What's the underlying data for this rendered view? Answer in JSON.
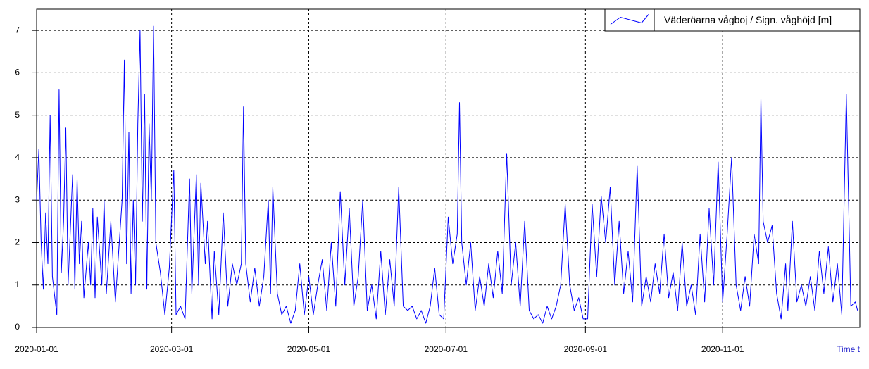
{
  "chart_data": {
    "type": "line",
    "x_label": "Time t",
    "legend": "upper right",
    "grid": true,
    "xlim": [
      "2020-01-01",
      "2021-01-01"
    ],
    "xticks": [
      "2020-01-01",
      "2020-03-01",
      "2020-05-01",
      "2020-07-01",
      "2020-09-01",
      "2020-11-01"
    ],
    "ylim": [
      0,
      7.5
    ],
    "yticks": [
      0,
      1,
      2,
      3,
      4,
      5,
      6,
      7
    ],
    "x": [
      "2020-01-01",
      "2020-01-02",
      "2020-01-03",
      "2020-01-04",
      "2020-01-05",
      "2020-01-06",
      "2020-01-07",
      "2020-01-08",
      "2020-01-10",
      "2020-01-11",
      "2020-01-12",
      "2020-01-13",
      "2020-01-14",
      "2020-01-15",
      "2020-01-17",
      "2020-01-18",
      "2020-01-19",
      "2020-01-20",
      "2020-01-21",
      "2020-01-22",
      "2020-01-24",
      "2020-01-25",
      "2020-01-26",
      "2020-01-27",
      "2020-01-28",
      "2020-01-30",
      "2020-01-31",
      "2020-02-01",
      "2020-02-03",
      "2020-02-05",
      "2020-02-08",
      "2020-02-09",
      "2020-02-10",
      "2020-02-11",
      "2020-02-12",
      "2020-02-13",
      "2020-02-14",
      "2020-02-15",
      "2020-02-16",
      "2020-02-17",
      "2020-02-18",
      "2020-02-19",
      "2020-02-20",
      "2020-02-21",
      "2020-02-22",
      "2020-02-23",
      "2020-02-25",
      "2020-02-27",
      "2020-02-29",
      "2020-03-02",
      "2020-03-03",
      "2020-03-05",
      "2020-03-07",
      "2020-03-09",
      "2020-03-10",
      "2020-03-12",
      "2020-03-13",
      "2020-03-14",
      "2020-03-16",
      "2020-03-17",
      "2020-03-19",
      "2020-03-20",
      "2020-03-22",
      "2020-03-24",
      "2020-03-26",
      "2020-03-28",
      "2020-03-30",
      "2020-04-01",
      "2020-04-02",
      "2020-04-03",
      "2020-04-05",
      "2020-04-07",
      "2020-04-09",
      "2020-04-11",
      "2020-04-13",
      "2020-04-14",
      "2020-04-15",
      "2020-04-17",
      "2020-04-19",
      "2020-04-21",
      "2020-04-23",
      "2020-04-25",
      "2020-04-27",
      "2020-04-29",
      "2020-05-01",
      "2020-05-03",
      "2020-05-05",
      "2020-05-07",
      "2020-05-09",
      "2020-05-11",
      "2020-05-13",
      "2020-05-15",
      "2020-05-17",
      "2020-05-19",
      "2020-05-21",
      "2020-05-23",
      "2020-05-25",
      "2020-05-27",
      "2020-05-29",
      "2020-05-31",
      "2020-06-02",
      "2020-06-04",
      "2020-06-06",
      "2020-06-08",
      "2020-06-10",
      "2020-06-12",
      "2020-06-14",
      "2020-06-16",
      "2020-06-18",
      "2020-06-20",
      "2020-06-22",
      "2020-06-24",
      "2020-06-26",
      "2020-06-28",
      "2020-06-30",
      "2020-07-02",
      "2020-07-04",
      "2020-07-06",
      "2020-07-07",
      "2020-07-08",
      "2020-07-10",
      "2020-07-12",
      "2020-07-14",
      "2020-07-16",
      "2020-07-18",
      "2020-07-20",
      "2020-07-22",
      "2020-07-24",
      "2020-07-26",
      "2020-07-28",
      "2020-07-30",
      "2020-08-01",
      "2020-08-03",
      "2020-08-05",
      "2020-08-07",
      "2020-08-09",
      "2020-08-11",
      "2020-08-13",
      "2020-08-15",
      "2020-08-17",
      "2020-08-19",
      "2020-08-21",
      "2020-08-23",
      "2020-08-25",
      "2020-08-27",
      "2020-08-29",
      "2020-08-31",
      "2020-09-02",
      "2020-09-04",
      "2020-09-06",
      "2020-09-08",
      "2020-09-10",
      "2020-09-12",
      "2020-09-14",
      "2020-09-16",
      "2020-09-18",
      "2020-09-20",
      "2020-09-22",
      "2020-09-24",
      "2020-09-26",
      "2020-09-28",
      "2020-09-30",
      "2020-10-02",
      "2020-10-04",
      "2020-10-06",
      "2020-10-08",
      "2020-10-10",
      "2020-10-12",
      "2020-10-14",
      "2020-10-16",
      "2020-10-18",
      "2020-10-20",
      "2020-10-22",
      "2020-10-24",
      "2020-10-26",
      "2020-10-28",
      "2020-10-30",
      "2020-11-01",
      "2020-11-03",
      "2020-11-05",
      "2020-11-07",
      "2020-11-09",
      "2020-11-11",
      "2020-11-13",
      "2020-11-15",
      "2020-11-17",
      "2020-11-18",
      "2020-11-19",
      "2020-11-21",
      "2020-11-23",
      "2020-11-25",
      "2020-11-27",
      "2020-11-29",
      "2020-11-30",
      "2020-12-02",
      "2020-12-04",
      "2020-12-06",
      "2020-12-08",
      "2020-12-10",
      "2020-12-12",
      "2020-12-14",
      "2020-12-16",
      "2020-12-18",
      "2020-12-20",
      "2020-12-22",
      "2020-12-24",
      "2020-12-26",
      "2020-12-28",
      "2020-12-30",
      "2020-12-31"
    ],
    "series": [
      {
        "name": "Väderöarna vågboj / Sign. våghöjd [m]",
        "color": "#0000ff",
        "values": [
          3.0,
          4.2,
          2.0,
          0.9,
          2.7,
          1.5,
          5.0,
          1.2,
          0.3,
          5.6,
          1.3,
          2.5,
          4.7,
          1.0,
          3.6,
          0.9,
          3.5,
          1.5,
          2.5,
          0.7,
          2.0,
          1.0,
          2.8,
          0.7,
          2.6,
          1.0,
          3.0,
          0.8,
          2.5,
          0.6,
          3.0,
          6.3,
          1.5,
          4.6,
          0.8,
          3.0,
          1.0,
          4.8,
          7.0,
          2.5,
          5.5,
          0.9,
          4.8,
          3.0,
          7.1,
          2.0,
          1.3,
          0.3,
          1.4,
          3.7,
          0.3,
          0.5,
          0.2,
          3.5,
          0.8,
          3.6,
          1.0,
          3.4,
          1.5,
          2.5,
          0.2,
          1.8,
          0.3,
          2.7,
          0.5,
          1.5,
          1.0,
          1.5,
          5.2,
          1.5,
          0.6,
          1.4,
          0.5,
          1.2,
          3.0,
          0.8,
          3.3,
          0.8,
          0.3,
          0.5,
          0.1,
          0.4,
          1.5,
          0.3,
          1.2,
          0.3,
          1.0,
          1.6,
          0.4,
          2.0,
          0.5,
          3.2,
          1.0,
          2.8,
          0.5,
          1.2,
          3.0,
          0.4,
          1.0,
          0.2,
          1.8,
          0.3,
          1.6,
          0.5,
          3.3,
          0.5,
          0.4,
          0.5,
          0.2,
          0.4,
          0.1,
          0.5,
          1.4,
          0.3,
          0.2,
          2.6,
          1.5,
          2.2,
          5.3,
          2.0,
          1.0,
          2.0,
          0.4,
          1.2,
          0.5,
          1.5,
          0.7,
          1.8,
          0.8,
          4.1,
          1.0,
          2.0,
          0.5,
          2.5,
          0.4,
          0.2,
          0.3,
          0.1,
          0.5,
          0.2,
          0.5,
          1.0,
          2.9,
          1.0,
          0.4,
          0.7,
          0.2,
          0.2,
          2.9,
          1.2,
          3.1,
          2.0,
          3.3,
          1.0,
          2.5,
          0.8,
          1.8,
          0.6,
          3.8,
          0.5,
          1.2,
          0.6,
          1.5,
          0.8,
          2.2,
          0.7,
          1.3,
          0.4,
          2.0,
          0.5,
          1.0,
          0.3,
          2.2,
          0.6,
          2.8,
          1.0,
          3.9,
          0.6,
          2.2,
          4.0,
          1.0,
          0.4,
          1.2,
          0.5,
          2.2,
          1.5,
          5.4,
          2.5,
          2.0,
          2.4,
          0.8,
          0.2,
          1.5,
          0.4,
          2.5,
          0.6,
          1.0,
          0.5,
          1.2,
          0.4,
          1.8,
          0.8,
          1.9,
          0.6,
          1.5,
          0.3,
          5.5,
          0.5,
          0.6,
          0.4
        ]
      }
    ]
  }
}
